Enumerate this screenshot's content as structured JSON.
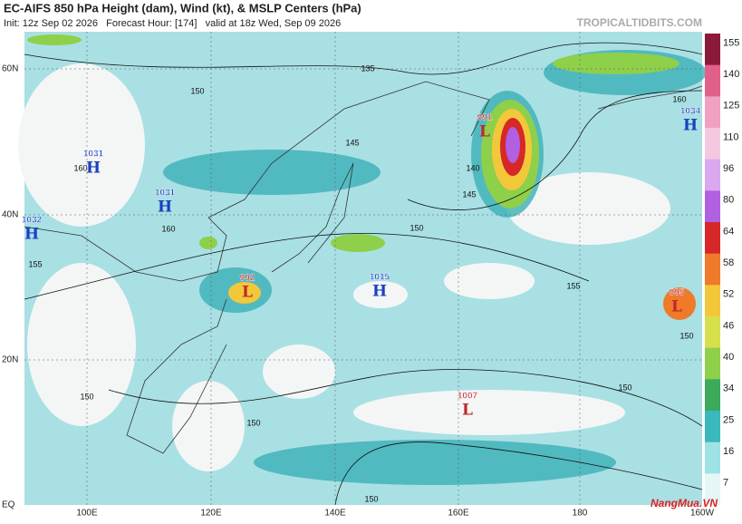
{
  "header": {
    "title": "EC-AIFS 850 hPa Height (dam), Wind (kt), & MSLP Centers (hPa)",
    "subtitle": "Init: 12z Sep 02 2026   Forecast Hour: [174]   valid at 18z Wed, Sep 09 2026",
    "site": "TROPICALTIDBITS.COM"
  },
  "map": {
    "lat_labels": [
      "60N",
      "40N",
      "20N",
      "EQ"
    ],
    "lon_labels": [
      "100E",
      "120E",
      "140E",
      "160E",
      "180",
      "160W"
    ],
    "centers": [
      {
        "pressure": "1031",
        "symbol": "H"
      },
      {
        "pressure": "1031",
        "symbol": "H"
      },
      {
        "pressure": "1032",
        "symbol": "H"
      },
      {
        "pressure": "1015",
        "symbol": "H"
      },
      {
        "pressure": "1034",
        "symbol": "H"
      },
      {
        "pressure": "991",
        "symbol": "L"
      },
      {
        "pressure": "992",
        "symbol": "L"
      },
      {
        "pressure": "995",
        "symbol": "L"
      },
      {
        "pressure": "1007",
        "symbol": "L"
      }
    ],
    "contour_labels": [
      "135",
      "150",
      "145",
      "160",
      "160",
      "155",
      "150",
      "145",
      "140",
      "155",
      "150",
      "150",
      "150",
      "150",
      "150",
      "160"
    ]
  },
  "colorbar": {
    "ticks": [
      "155",
      "140",
      "125",
      "110",
      "96",
      "80",
      "64",
      "58",
      "52",
      "46",
      "40",
      "34",
      "25",
      "16",
      "7"
    ],
    "colors": [
      "#8b1a3a",
      "#e0608a",
      "#f0a0c0",
      "#f4c8e0",
      "#d9a8ee",
      "#b060e0",
      "#d62828",
      "#ee7a2a",
      "#f2c83a",
      "#d6e04a",
      "#8ed04a",
      "#3caa5a",
      "#3ab8bc",
      "#9ee2e6",
      "#e4f6f6"
    ]
  },
  "watermark": "NangMua.VN"
}
